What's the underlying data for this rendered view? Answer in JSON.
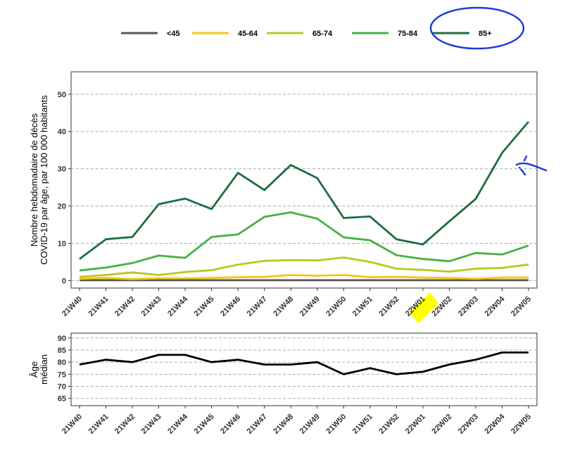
{
  "colors": {
    "under45": "#555555",
    "age45_64": "#f2c80f",
    "age65_74": "#b8c91f",
    "age75_84": "#46b044",
    "age85plus": "#1b6e3f",
    "median": "#000000",
    "grid": "#aaaaaa",
    "highlight": "#ffff00",
    "annotation": "#1f3ed9"
  },
  "chart_data": [
    {
      "type": "line",
      "ylabel_line1": "Nombre hebdomadaire de décès",
      "ylabel_line2": "COVID-19 par âge, par 100 000 habitants",
      "ylim": [
        -2,
        56
      ],
      "yticks": [
        0,
        10,
        20,
        30,
        40,
        50
      ],
      "grid": "horizontal-dashed",
      "legend_position": "top",
      "categories": [
        "21W40",
        "21W41",
        "21W42",
        "21W43",
        "21W44",
        "21W45",
        "21W46",
        "21W47",
        "21W48",
        "21W49",
        "21W50",
        "21W51",
        "21W52",
        "22W01",
        "22W02",
        "22W03",
        "22W04",
        "22W05"
      ],
      "highlighted_category": "22W01",
      "series": [
        {
          "name": "<45",
          "color_key": "under45",
          "values": [
            0.1,
            0.1,
            0.1,
            0.1,
            0.1,
            0.1,
            0.1,
            0.1,
            0.1,
            0.1,
            0.1,
            0.1,
            0.1,
            0.1,
            0.1,
            0.1,
            0.1,
            0.1
          ]
        },
        {
          "name": "45-64",
          "color_key": "age45_64",
          "values": [
            0.5,
            0.7,
            0.4,
            0.6,
            0.6,
            0.7,
            0.9,
            1.0,
            1.5,
            1.3,
            1.5,
            0.9,
            1.0,
            0.8,
            0.7,
            0.5,
            0.8,
            0.8
          ]
        },
        {
          "name": "65-74",
          "color_key": "age65_74",
          "values": [
            1.0,
            1.5,
            2.2,
            1.5,
            2.3,
            2.8,
            4.3,
            5.3,
            5.5,
            5.4,
            6.2,
            5.0,
            3.2,
            2.9,
            2.4,
            3.2,
            3.4,
            4.3
          ]
        },
        {
          "name": "75-84",
          "color_key": "age75_84",
          "values": [
            2.7,
            3.5,
            4.7,
            6.7,
            6.1,
            11.7,
            12.4,
            17.1,
            18.3,
            16.6,
            11.6,
            10.8,
            6.8,
            5.8,
            5.2,
            7.4,
            7.0,
            9.4
          ]
        },
        {
          "name": "85+",
          "color_key": "age85plus",
          "values": [
            5.8,
            11.1,
            11.7,
            20.5,
            22.0,
            19.2,
            28.9,
            24.3,
            31.0,
            27.5,
            16.8,
            17.2,
            11.1,
            9.7,
            15.9,
            21.9,
            34.3,
            42.6
          ]
        }
      ]
    },
    {
      "type": "line",
      "ylabel_line1": "Âge",
      "ylabel_line2": "médian",
      "ylim": [
        62,
        92
      ],
      "yticks": [
        65,
        70,
        75,
        80,
        85,
        90
      ],
      "grid": "horizontal-dashed",
      "categories": [
        "21W40",
        "21W41",
        "21W42",
        "21W43",
        "21W44",
        "21W45",
        "21W46",
        "21W47",
        "21W48",
        "21W49",
        "21W50",
        "21W51",
        "21W52",
        "22W01",
        "22W02",
        "22W03",
        "22W04",
        "22W05"
      ],
      "series": [
        {
          "color_key": "median",
          "values": [
            79,
            81,
            80,
            83,
            83,
            80,
            81,
            79,
            79,
            80,
            75,
            77.5,
            75,
            76,
            79,
            81,
            84,
            84
          ]
        }
      ]
    }
  ]
}
